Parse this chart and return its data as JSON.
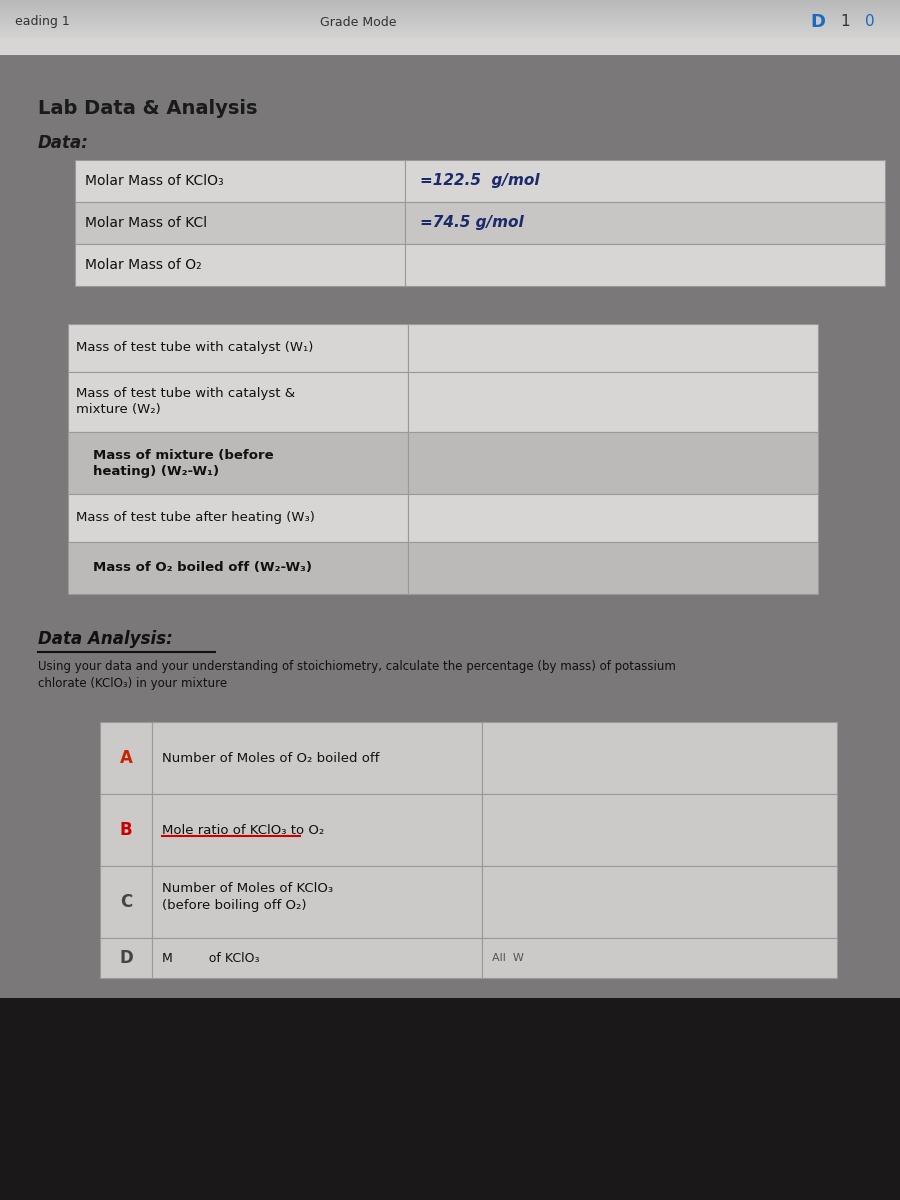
{
  "title": "Lab Data & Analysis",
  "bg_top": "#8a8a8a",
  "bg_main": "#7a7878",
  "bg_header": "#b0b0b0",
  "section_data_label": "Data:",
  "section_analysis_label": "Data Analysis:",
  "table1_rows": [
    {
      "label": "Molar Mass of KClO₃",
      "value": "=122.5  g/mol",
      "bold_value": true
    },
    {
      "label": "Molar Mass of KCl",
      "value": "=74.5 g/mol",
      "bold_value": true
    },
    {
      "label": "Molar Mass of O₂",
      "value": "",
      "bold_value": false
    }
  ],
  "table2_rows": [
    {
      "label": "Mass of test tube with catalyst (W₁)",
      "bold": false,
      "indent": false
    },
    {
      "label": "Mass of test tube with catalyst &\nmixture (W₂)",
      "bold": false,
      "indent": false
    },
    {
      "label": "Mass of mixture (before\nheating) (W₂-W₁)",
      "bold": true,
      "indent": true
    },
    {
      "label": "Mass of test tube after heating (W₃)",
      "bold": false,
      "indent": false
    },
    {
      "label": "Mass of O₂ boiled off (W₂-W₃)",
      "bold": true,
      "indent": true
    }
  ],
  "analysis_intro": "Using your data and your understanding of stoichiometry, calculate the percentage (by mass) of potassium\nchlorate (KClO₃) in your mixture",
  "analysis_rows": [
    {
      "letter": "A",
      "letter_color": "#cc2200",
      "label": "Number of Moles of O₂ boiled off",
      "underline": false
    },
    {
      "letter": "B",
      "letter_color": "#cc0000",
      "label": "Mole ratio of KClO₃ to O₂",
      "underline": true
    },
    {
      "letter": "C",
      "letter_color": "#444444",
      "label": "Number of Moles of KClO₃\n(before boiling off O₂)",
      "underline": false
    }
  ],
  "table_bg_light": "#d8d6d4",
  "table_bg_alt": "#c8c6c4",
  "cell_border": "#999999",
  "bold_row_bg": "#bcbab8",
  "analysis_table_bg": "#cccac8",
  "dark_bottom": "#1a1818",
  "browser_bg": "#c8c8c8",
  "browser_bar": "#d0d0d0"
}
